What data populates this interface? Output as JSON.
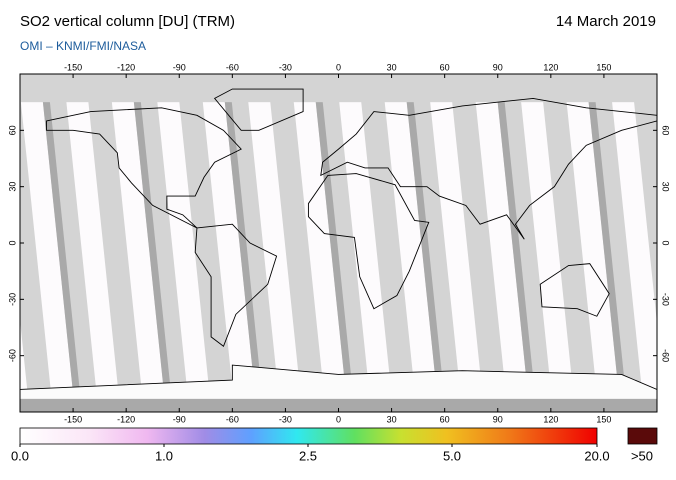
{
  "header": {
    "title": "SO2 vertical column [DU] (TRM)",
    "date": "14 March 2019",
    "subtitle": "OMI  –  KNMI/FMI/NASA"
  },
  "map": {
    "lon_ticks": [
      -150,
      -120,
      -90,
      -60,
      -30,
      0,
      30,
      60,
      90,
      120,
      150
    ],
    "lat_ticks": [
      -60,
      -30,
      0,
      30,
      60
    ]
  },
  "colorbar": {
    "ticks": [
      {
        "value": 0,
        "label": "0.0"
      },
      {
        "value": 1,
        "label": "1.0"
      },
      {
        "value": 2.5,
        "label": "2.5"
      },
      {
        "value": 5,
        "label": "5.0"
      },
      {
        "value": 20,
        "label": "20.0"
      }
    ],
    "overflow_label": ">50"
  }
}
